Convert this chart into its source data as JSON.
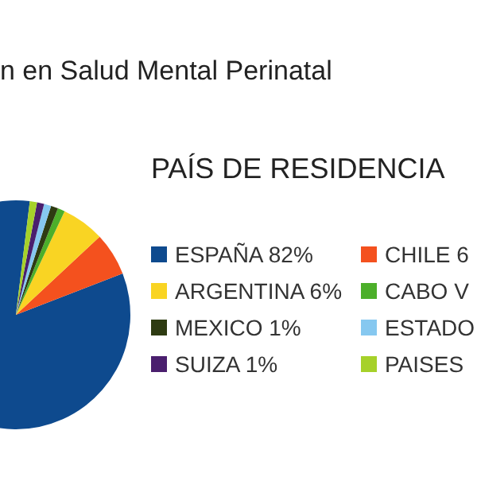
{
  "chart_data": {
    "type": "pie",
    "title": "PAÍS DE RESIDENCIA",
    "annotations": [
      "n en Salud Mental Perinatal"
    ],
    "categories": [
      "ESPAÑA 82%",
      "CHILE 6",
      "ARGENTINA 6%",
      "CABO V",
      "MEXICO 1%",
      "ESTADO",
      "SUIZA 1%",
      "PAISES"
    ],
    "values": [
      82,
      6,
      6,
      1,
      1,
      1,
      1,
      1
    ],
    "colors": [
      "#0e4a8e",
      "#f4511e",
      "#f9d423",
      "#4caf2a",
      "#2e3b12",
      "#86c8f0",
      "#4a1f6e",
      "#a6d12a"
    ],
    "legend": "right"
  }
}
